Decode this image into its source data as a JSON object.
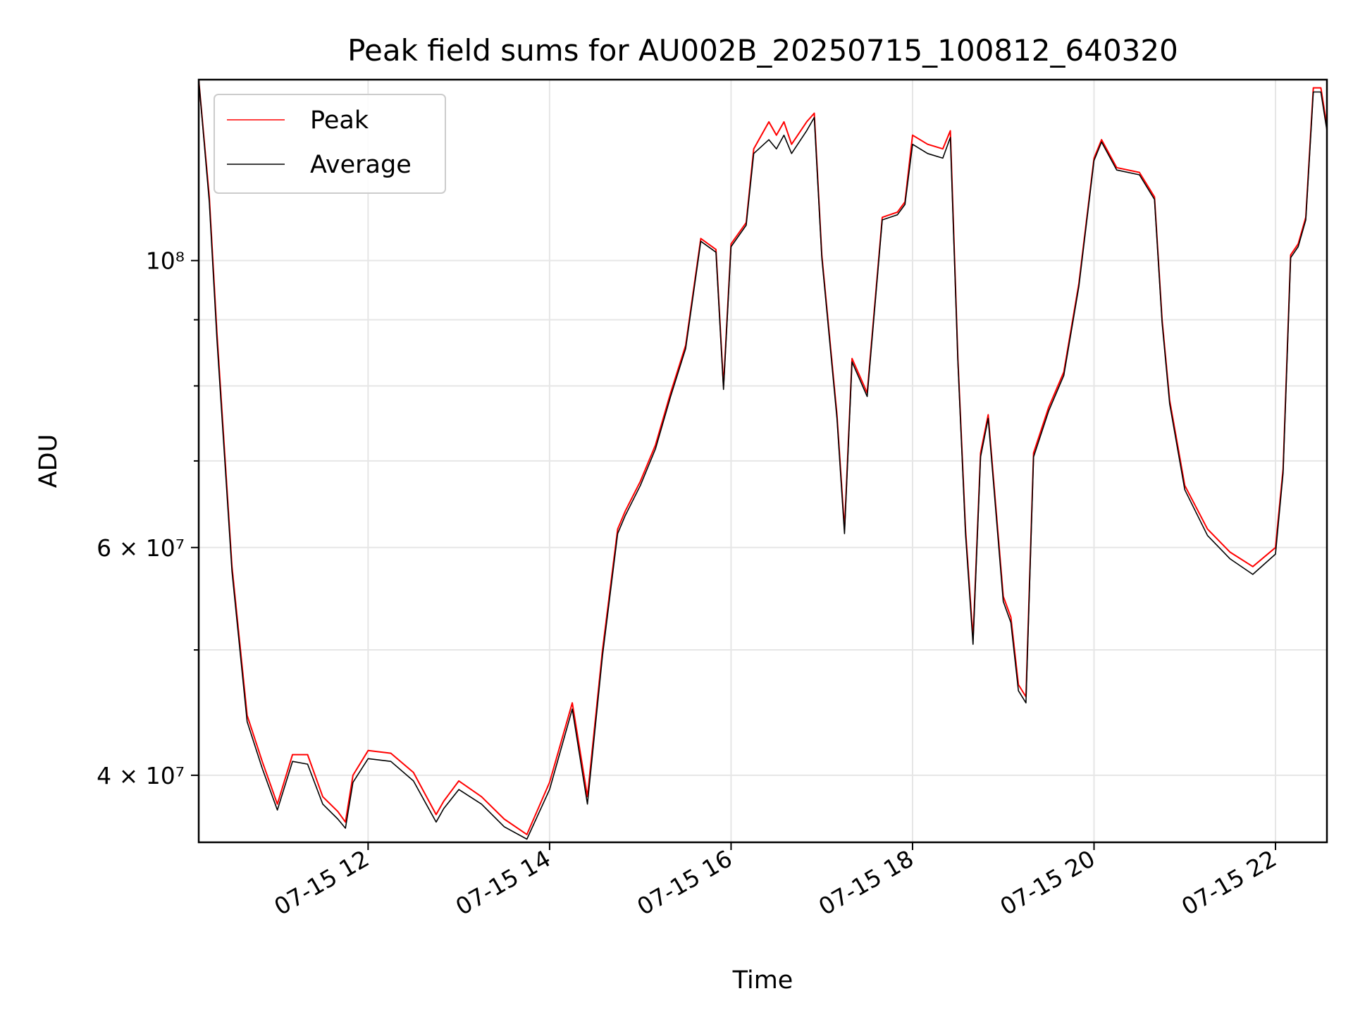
{
  "chart_data": {
    "type": "line",
    "title": "Peak field sums for AU002B_20250715_100812_640320",
    "xlabel": "Time",
    "ylabel": "ADU",
    "yscale": "log",
    "xlim": [
      "2025-07-15 10:08",
      "2025-07-15 22:34"
    ],
    "ylim": [
      35500000,
      138000000
    ],
    "grid": true,
    "legend_position": "top-left",
    "x_tick_labels": [
      "07-15 12",
      "07-15 14",
      "07-15 16",
      "07-15 18",
      "07-15 20",
      "07-15 22"
    ],
    "x_ticks": [
      "2025-07-15 12:00",
      "2025-07-15 14:00",
      "2025-07-15 16:00",
      "2025-07-15 18:00",
      "2025-07-15 20:00",
      "2025-07-15 22:00"
    ],
    "y_tick_labels": [
      "4 × 10^7",
      "6 × 10^7",
      "10^8"
    ],
    "y_ticks": [
      40000000,
      60000000,
      100000000
    ],
    "colors": {
      "Peak": "#ff0000",
      "Average": "#000000"
    },
    "series": [
      {
        "name": "Peak",
        "x": [
          "2025-07-15 10:08",
          "2025-07-15 10:15",
          "2025-07-15 10:20",
          "2025-07-15 10:30",
          "2025-07-15 10:40",
          "2025-07-15 10:50",
          "2025-07-15 11:00",
          "2025-07-15 11:10",
          "2025-07-15 11:20",
          "2025-07-15 11:30",
          "2025-07-15 11:40",
          "2025-07-15 11:45",
          "2025-07-15 11:50",
          "2025-07-15 12:00",
          "2025-07-15 12:15",
          "2025-07-15 12:30",
          "2025-07-15 12:45",
          "2025-07-15 12:50",
          "2025-07-15 13:00",
          "2025-07-15 13:15",
          "2025-07-15 13:30",
          "2025-07-15 13:45",
          "2025-07-15 14:00",
          "2025-07-15 14:15",
          "2025-07-15 14:25",
          "2025-07-15 14:35",
          "2025-07-15 14:45",
          "2025-07-15 14:50",
          "2025-07-15 15:00",
          "2025-07-15 15:10",
          "2025-07-15 15:20",
          "2025-07-15 15:30",
          "2025-07-15 15:40",
          "2025-07-15 15:50",
          "2025-07-15 15:55",
          "2025-07-15 16:00",
          "2025-07-15 16:10",
          "2025-07-15 16:15",
          "2025-07-15 16:25",
          "2025-07-15 16:30",
          "2025-07-15 16:35",
          "2025-07-15 16:40",
          "2025-07-15 16:50",
          "2025-07-15 16:55",
          "2025-07-15 17:00",
          "2025-07-15 17:10",
          "2025-07-15 17:15",
          "2025-07-15 17:20",
          "2025-07-15 17:30",
          "2025-07-15 17:40",
          "2025-07-15 17:50",
          "2025-07-15 17:55",
          "2025-07-15 18:00",
          "2025-07-15 18:10",
          "2025-07-15 18:20",
          "2025-07-15 18:25",
          "2025-07-15 18:30",
          "2025-07-15 18:35",
          "2025-07-15 18:40",
          "2025-07-15 18:45",
          "2025-07-15 18:50",
          "2025-07-15 19:00",
          "2025-07-15 19:05",
          "2025-07-15 19:10",
          "2025-07-15 19:15",
          "2025-07-15 19:20",
          "2025-07-15 19:30",
          "2025-07-15 19:40",
          "2025-07-15 19:50",
          "2025-07-15 20:00",
          "2025-07-15 20:05",
          "2025-07-15 20:15",
          "2025-07-15 20:30",
          "2025-07-15 20:40",
          "2025-07-15 20:45",
          "2025-07-15 20:50",
          "2025-07-15 21:00",
          "2025-07-15 21:15",
          "2025-07-15 21:30",
          "2025-07-15 21:45",
          "2025-07-15 22:00",
          "2025-07-15 22:05",
          "2025-07-15 22:10",
          "2025-07-15 22:15",
          "2025-07-15 22:20",
          "2025-07-15 22:25",
          "2025-07-15 22:30",
          "2025-07-15 22:34"
        ],
        "values": [
          138000000,
          112000000,
          88000000,
          58000000,
          44500000,
          41000000,
          38000000,
          41500000,
          41500000,
          38500000,
          37500000,
          36800000,
          40000000,
          41800000,
          41600000,
          40200000,
          37300000,
          38200000,
          39600000,
          38500000,
          37000000,
          36000000,
          39500000,
          45500000,
          38500000,
          50000000,
          62000000,
          64000000,
          67500000,
          72000000,
          79000000,
          86000000,
          104000000,
          102000000,
          80000000,
          103000000,
          107000000,
          122000000,
          128000000,
          125000000,
          128000000,
          123000000,
          128000000,
          130000000,
          101000000,
          76000000,
          62000000,
          84000000,
          79000000,
          108000000,
          109000000,
          111000000,
          125000000,
          123000000,
          122000000,
          126000000,
          84000000,
          62000000,
          51000000,
          71000000,
          76000000,
          55000000,
          53000000,
          47000000,
          46000000,
          71000000,
          77000000,
          82000000,
          96000000,
          120000000,
          124000000,
          118000000,
          117000000,
          112000000,
          90000000,
          78000000,
          67000000,
          62000000,
          59500000,
          58000000,
          60000000,
          69000000,
          101000000,
          103000000,
          108000000,
          136000000,
          136000000,
          127000000
        ]
      },
      {
        "name": "Average",
        "x": [
          "2025-07-15 10:08",
          "2025-07-15 10:15",
          "2025-07-15 10:20",
          "2025-07-15 10:30",
          "2025-07-15 10:40",
          "2025-07-15 10:50",
          "2025-07-15 11:00",
          "2025-07-15 11:10",
          "2025-07-15 11:20",
          "2025-07-15 11:30",
          "2025-07-15 11:40",
          "2025-07-15 11:45",
          "2025-07-15 11:50",
          "2025-07-15 12:00",
          "2025-07-15 12:15",
          "2025-07-15 12:30",
          "2025-07-15 12:45",
          "2025-07-15 12:50",
          "2025-07-15 13:00",
          "2025-07-15 13:15",
          "2025-07-15 13:30",
          "2025-07-15 13:45",
          "2025-07-15 14:00",
          "2025-07-15 14:15",
          "2025-07-15 14:25",
          "2025-07-15 14:35",
          "2025-07-15 14:45",
          "2025-07-15 14:50",
          "2025-07-15 15:00",
          "2025-07-15 15:10",
          "2025-07-15 15:20",
          "2025-07-15 15:30",
          "2025-07-15 15:40",
          "2025-07-15 15:50",
          "2025-07-15 15:55",
          "2025-07-15 16:00",
          "2025-07-15 16:10",
          "2025-07-15 16:15",
          "2025-07-15 16:25",
          "2025-07-15 16:30",
          "2025-07-15 16:35",
          "2025-07-15 16:40",
          "2025-07-15 16:50",
          "2025-07-15 16:55",
          "2025-07-15 17:00",
          "2025-07-15 17:10",
          "2025-07-15 17:15",
          "2025-07-15 17:20",
          "2025-07-15 17:30",
          "2025-07-15 17:40",
          "2025-07-15 17:50",
          "2025-07-15 17:55",
          "2025-07-15 18:00",
          "2025-07-15 18:10",
          "2025-07-15 18:20",
          "2025-07-15 18:25",
          "2025-07-15 18:30",
          "2025-07-15 18:35",
          "2025-07-15 18:40",
          "2025-07-15 18:45",
          "2025-07-15 18:50",
          "2025-07-15 19:00",
          "2025-07-15 19:05",
          "2025-07-15 19:10",
          "2025-07-15 19:15",
          "2025-07-15 19:20",
          "2025-07-15 19:30",
          "2025-07-15 19:40",
          "2025-07-15 19:50",
          "2025-07-15 20:00",
          "2025-07-15 20:05",
          "2025-07-15 20:15",
          "2025-07-15 20:30",
          "2025-07-15 20:40",
          "2025-07-15 20:45",
          "2025-07-15 20:50",
          "2025-07-15 21:00",
          "2025-07-15 21:15",
          "2025-07-15 21:30",
          "2025-07-15 21:45",
          "2025-07-15 22:00",
          "2025-07-15 22:05",
          "2025-07-15 22:10",
          "2025-07-15 22:15",
          "2025-07-15 22:20",
          "2025-07-15 22:25",
          "2025-07-15 22:30",
          "2025-07-15 22:34"
        ],
        "values": [
          138000000,
          111000000,
          87000000,
          57500000,
          44000000,
          40500000,
          37600000,
          41000000,
          40800000,
          38000000,
          37000000,
          36400000,
          39500000,
          41200000,
          41000000,
          39600000,
          36800000,
          37700000,
          39000000,
          38000000,
          36500000,
          35700000,
          39000000,
          45000000,
          38000000,
          49500000,
          61500000,
          63500000,
          67000000,
          71500000,
          78500000,
          85500000,
          103500000,
          101500000,
          79500000,
          102500000,
          106500000,
          121000000,
          124000000,
          122000000,
          125000000,
          121000000,
          126000000,
          129000000,
          100500000,
          75500000,
          61500000,
          83500000,
          78500000,
          107500000,
          108500000,
          110500000,
          123000000,
          121000000,
          120000000,
          124500000,
          83500000,
          61500000,
          50500000,
          70500000,
          75500000,
          54500000,
          52500000,
          46500000,
          45500000,
          70500000,
          76500000,
          81500000,
          95500000,
          119500000,
          123500000,
          117500000,
          116500000,
          111500000,
          89500000,
          77500000,
          66500000,
          61300000,
          58800000,
          57200000,
          59300000,
          68500000,
          100500000,
          102500000,
          107500000,
          135000000,
          135000000,
          126000000
        ]
      }
    ]
  }
}
